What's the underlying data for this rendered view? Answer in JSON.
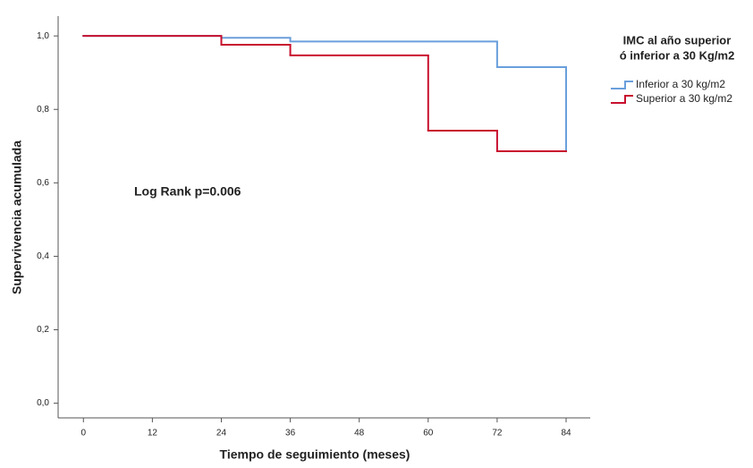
{
  "chart_data": {
    "type": "step",
    "xlabel": "Tiempo de seguimiento (meses)",
    "ylabel": "Supervivencia acumulada",
    "annotation": "Log Rank p=0.006",
    "legend_title": [
      "IMC al año superior",
      "ó inferior a 30 Kg/m2"
    ],
    "legend_position": "upper right",
    "series": [
      {
        "name": "Inferior a 30 kg/m2",
        "color": "#6a9fdc",
        "x": [
          0,
          24,
          36,
          72,
          84
        ],
        "values": [
          1.0,
          0.995,
          0.985,
          0.915,
          0.686
        ]
      },
      {
        "name": "Superior a 30 kg/m2",
        "color": "#c8102e",
        "x": [
          0,
          24,
          36,
          60,
          72,
          84
        ],
        "values": [
          1.0,
          0.976,
          0.947,
          0.742,
          0.686,
          0.686
        ]
      }
    ],
    "xlim": [
      -4.4,
      88.2
    ],
    "xticks": [
      0,
      12,
      24,
      36,
      48,
      60,
      72,
      84
    ],
    "ylim": [
      -0.04,
      1.054
    ],
    "yticks": [
      {
        "value": 0,
        "label": "0,0"
      },
      {
        "value": 0.2,
        "label": "0,2"
      },
      {
        "value": 0.4,
        "label": "0,4"
      },
      {
        "value": 0.6,
        "label": "0,6"
      },
      {
        "value": 0.8,
        "label": "0,8"
      },
      {
        "value": 1,
        "label": "1,0"
      }
    ]
  }
}
